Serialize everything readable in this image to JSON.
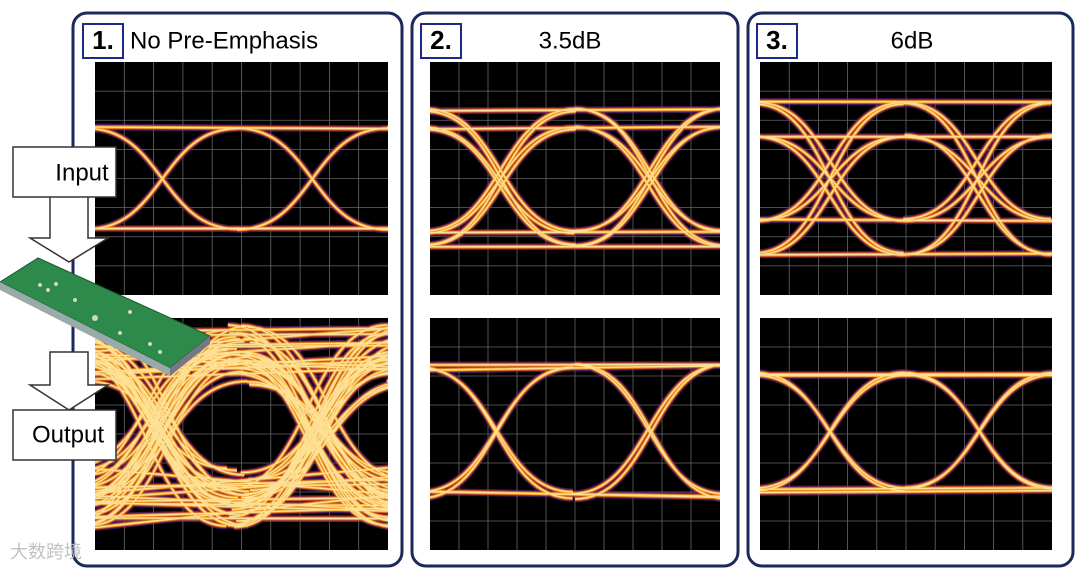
{
  "panels": [
    {
      "number": "1.",
      "title": "No Pre-Emphasis"
    },
    {
      "number": "2.",
      "title": "3.5dB"
    },
    {
      "number": "3.",
      "title": "6dB"
    }
  ],
  "labels": {
    "input": "Input",
    "output": "Output"
  },
  "watermark": "大数跨境"
}
